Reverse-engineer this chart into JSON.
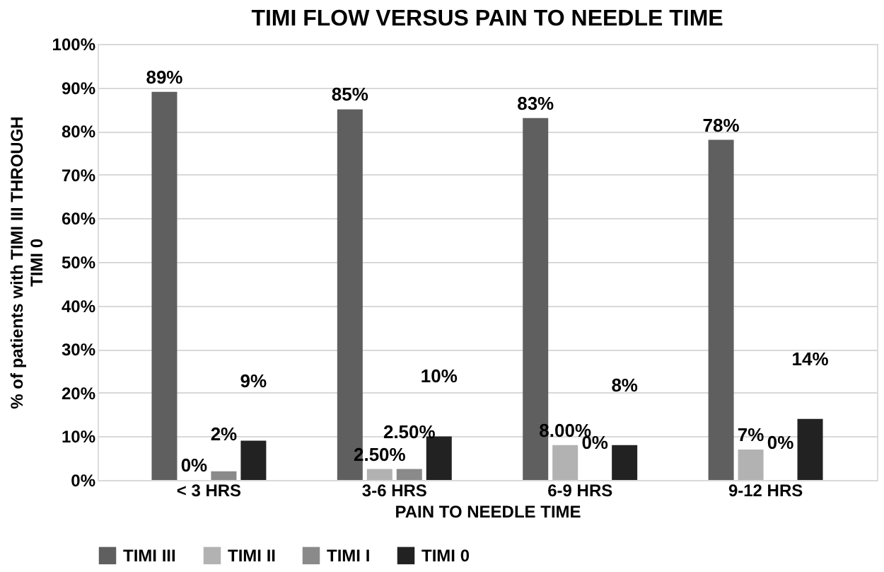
{
  "chart_data": {
    "type": "bar",
    "title": "TIMI FLOW VERSUS PAIN TO NEEDLE TIME",
    "xlabel": "PAIN TO NEEDLE TIME",
    "ylabel": "% of patients with TIMI III THROUGH TIMI 0",
    "categories": [
      "< 3 HRS",
      "3-6 HRS",
      "6-9 HRS",
      "9-12 HRS"
    ],
    "series": [
      {
        "name": "TIMI III",
        "color": "#5f5f5f",
        "values": [
          89,
          85,
          83,
          78
        ],
        "value_labels": [
          "89%",
          "85%",
          "83%",
          "78%"
        ]
      },
      {
        "name": "TIMI II",
        "color": "#b2b2b2",
        "values": [
          0,
          2.5,
          8,
          7
        ],
        "value_labels": [
          "0%",
          "2.50%",
          "8.00%",
          "7%"
        ]
      },
      {
        "name": "TIMI I",
        "color": "#8a8a8a",
        "values": [
          2,
          2.5,
          0,
          0
        ],
        "value_labels": [
          "2%",
          "2.50%",
          "0%",
          "0%"
        ]
      },
      {
        "name": "TIMI 0",
        "color": "#222222",
        "values": [
          9,
          10,
          8,
          14
        ],
        "value_labels": [
          "9%",
          "10%",
          "8%",
          "14%"
        ]
      }
    ],
    "ylim": [
      0,
      100
    ],
    "yticks": [
      {
        "value": 0,
        "label": "0%"
      },
      {
        "value": 10,
        "label": "10%"
      },
      {
        "value": 20,
        "label": "20%"
      },
      {
        "value": 30,
        "label": "30%"
      },
      {
        "value": 40,
        "label": "40%"
      },
      {
        "value": 50,
        "label": "50%"
      },
      {
        "value": 60,
        "label": "60%"
      },
      {
        "value": 70,
        "label": "70%"
      },
      {
        "value": 80,
        "label": "80%"
      },
      {
        "value": 90,
        "label": "90%"
      },
      {
        "value": 100,
        "label": "100%"
      }
    ],
    "grid": "y",
    "legend": "bottom"
  }
}
